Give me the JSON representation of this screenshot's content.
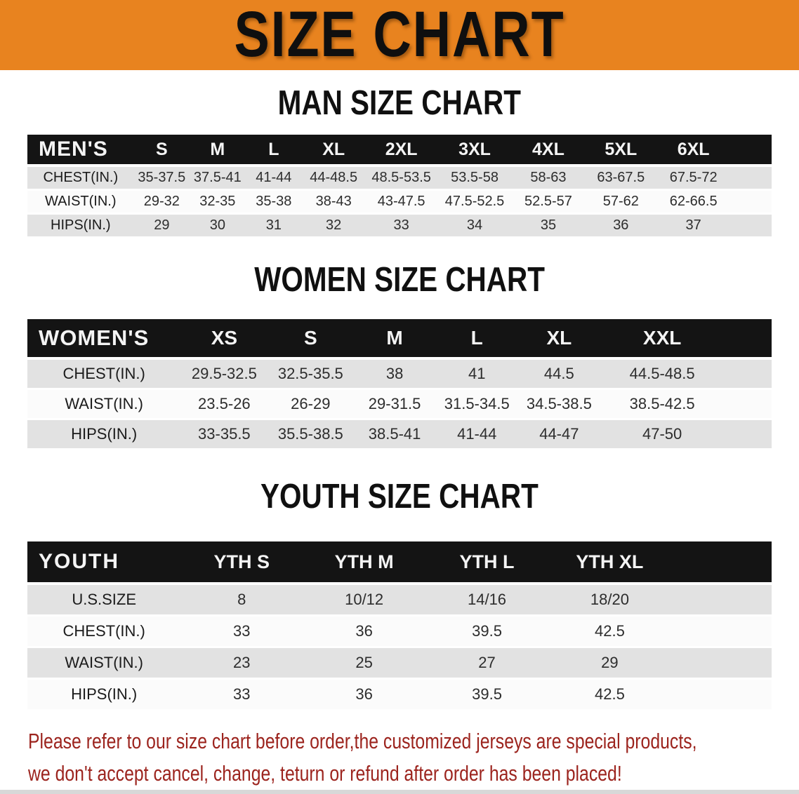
{
  "banner": {
    "title": "SIZE CHART",
    "bg_color": "#E8831F"
  },
  "sections": [
    {
      "heading": "MAN SIZE CHART",
      "table": {
        "name": "mens",
        "header": [
          "MEN'S",
          "S",
          "M",
          "L",
          "XL",
          "2XL",
          "3XL",
          "4XL",
          "5XL",
          "6XL"
        ],
        "rows": [
          {
            "label": "CHEST(IN.)",
            "values": [
              "35-37.5",
              "37.5-41",
              "41-44",
              "44-48.5",
              "48.5-53.5",
              "53.5-58",
              "58-63",
              "63-67.5",
              "67.5-72"
            ]
          },
          {
            "label": "WAIST(IN.)",
            "values": [
              "29-32",
              "32-35",
              "35-38",
              "38-43",
              "43-47.5",
              "47.5-52.5",
              "52.5-57",
              "57-62",
              "62-66.5"
            ]
          },
          {
            "label": "HIPS(IN.)",
            "values": [
              "29",
              "30",
              "31",
              "32",
              "33",
              "34",
              "35",
              "36",
              "37"
            ]
          }
        ]
      }
    },
    {
      "heading": "WOMEN SIZE CHART",
      "table": {
        "name": "womens",
        "header": [
          "WOMEN'S",
          "XS",
          "S",
          "M",
          "L",
          "XL",
          "XXL"
        ],
        "rows": [
          {
            "label": "CHEST(IN.)",
            "values": [
              "29.5-32.5",
              "32.5-35.5",
              "38",
              "41",
              "44.5",
              "44.5-48.5"
            ]
          },
          {
            "label": "WAIST(IN.)",
            "values": [
              "23.5-26",
              "26-29",
              "29-31.5",
              "31.5-34.5",
              "34.5-38.5",
              "38.5-42.5"
            ]
          },
          {
            "label": "HIPS(IN.)",
            "values": [
              "33-35.5",
              "35.5-38.5",
              "38.5-41",
              "41-44",
              "44-47",
              "47-50"
            ]
          }
        ]
      }
    },
    {
      "heading": "YOUTH SIZE CHART",
      "table": {
        "name": "youth",
        "header": [
          "YOUTH",
          "YTH S",
          "YTH M",
          "YTH L",
          "YTH XL"
        ],
        "rows": [
          {
            "label": "U.S.SIZE",
            "values": [
              "8",
              "10/12",
              "14/16",
              "18/20"
            ]
          },
          {
            "label": "CHEST(IN.)",
            "values": [
              "33",
              "36",
              "39.5",
              "42.5"
            ]
          },
          {
            "label": "WAIST(IN.)",
            "values": [
              "23",
              "25",
              "27",
              "29"
            ]
          },
          {
            "label": "HIPS(IN.)",
            "values": [
              "33",
              "36",
              "39.5",
              "42.5"
            ]
          }
        ]
      }
    }
  ],
  "footer": {
    "lines": [
      "Please refer to our size chart before order,the customized jerseys are special products,",
      "we don't accept cancel, change, teturn or refund after order has been placed!"
    ],
    "text_color": "#9C241E"
  },
  "colors": {
    "banner_bg": "#E8831F",
    "table_header_bg": "#141414",
    "row_gray": "#E2E2E2",
    "row_white": "#FBFBFB",
    "footer_red": "#9C241E"
  }
}
